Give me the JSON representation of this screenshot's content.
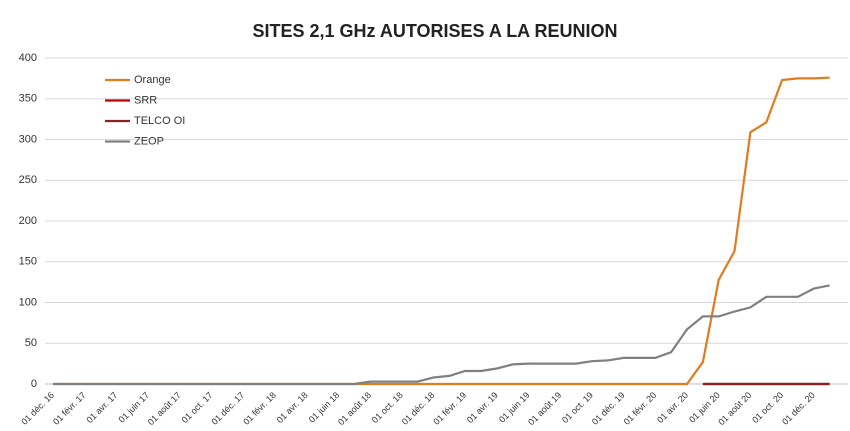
{
  "chart_data": {
    "type": "line",
    "title": "SITES 2,1 GHz AUTORISES A LA REUNION",
    "categories": [
      "01 déc. 16",
      null,
      "01 févr. 17",
      null,
      "01 avr. 17",
      null,
      "01 juin 17",
      null,
      "01 août 17",
      null,
      "01 oct. 17",
      null,
      "01 déc. 17",
      null,
      "01 févr. 18",
      null,
      "01 avr. 18",
      null,
      "01 juin 18",
      null,
      "01 août 18",
      null,
      "01 oct. 18",
      null,
      "01 déc. 18",
      null,
      "01 févr. 19",
      null,
      "01 avr. 19",
      null,
      "01 juin 19",
      null,
      "01 août 19",
      null,
      "01 oct. 19",
      null,
      "01 déc. 19",
      null,
      "01 févr. 20",
      null,
      "01 avr. 20",
      null,
      "01 juin 20",
      null,
      "01 août 20",
      null,
      "01 oct. 20",
      null,
      "01 déc. 20",
      null
    ],
    "series": [
      {
        "name": "Orange",
        "color": "#e07b1f",
        "values": [
          0,
          0,
          0,
          0,
          0,
          0,
          0,
          0,
          0,
          0,
          0,
          0,
          0,
          0,
          0,
          0,
          0,
          0,
          0,
          0,
          0,
          0,
          0,
          0,
          0,
          0,
          0,
          0,
          0,
          0,
          0,
          0,
          0,
          0,
          0,
          0,
          0,
          0,
          0,
          0,
          0,
          27,
          128,
          163,
          309,
          321,
          373,
          375,
          375,
          376
        ]
      },
      {
        "name": "SRR",
        "color": "#c00000",
        "values": [
          null,
          null,
          null,
          null,
          null,
          null,
          null,
          null,
          null,
          null,
          null,
          null,
          null,
          null,
          null,
          null,
          null,
          null,
          null,
          null,
          null,
          null,
          null,
          null,
          null,
          null,
          null,
          null,
          null,
          null,
          null,
          null,
          null,
          null,
          null,
          null,
          null,
          null,
          null,
          null,
          null,
          0,
          0,
          0,
          0,
          0,
          0,
          0,
          0,
          0
        ]
      },
      {
        "name": "TELCO OI",
        "color": "#8b2020",
        "values": [
          null,
          null,
          null,
          null,
          null,
          null,
          null,
          null,
          null,
          null,
          null,
          null,
          null,
          null,
          null,
          null,
          null,
          null,
          null,
          null,
          null,
          null,
          null,
          null,
          null,
          null,
          null,
          null,
          null,
          null,
          null,
          null,
          null,
          null,
          null,
          null,
          null,
          null,
          null,
          null,
          null,
          0,
          0,
          0,
          0,
          0,
          0,
          0,
          0,
          0
        ]
      },
      {
        "name": "ZEOP",
        "color": "#808080",
        "values": [
          0,
          0,
          0,
          0,
          0,
          0,
          0,
          0,
          0,
          0,
          0,
          0,
          0,
          0,
          0,
          0,
          0,
          0,
          0,
          0,
          3,
          3,
          3,
          3,
          8,
          10,
          16,
          16,
          19,
          24,
          25,
          25,
          25,
          25,
          28,
          29,
          32,
          32,
          32,
          39,
          67,
          83,
          83,
          89,
          94,
          107,
          107,
          107,
          117,
          121
        ]
      }
    ],
    "ylim": [
      0,
      400
    ],
    "yticks": [
      0,
      50,
      100,
      150,
      200,
      250,
      300,
      350,
      400
    ],
    "grid": true
  }
}
